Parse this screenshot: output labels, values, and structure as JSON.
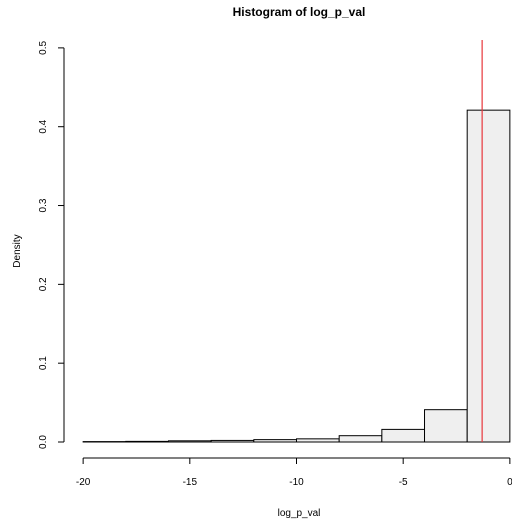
{
  "chart_data": {
    "type": "bar",
    "title": "Histogram of log_p_val",
    "xlabel": "log_p_val",
    "ylabel": "Density",
    "xlim": [
      -20.1,
      0.1
    ],
    "ylim": [
      0,
      0.51
    ],
    "x_ticks": [
      -20,
      -15,
      -10,
      -5,
      0
    ],
    "x_tick_labels": [
      "-20",
      "-15",
      "-10",
      "-5",
      "0"
    ],
    "y_ticks": [
      0.0,
      0.1,
      0.2,
      0.3,
      0.4,
      0.5
    ],
    "y_tick_labels": [
      "0.0",
      "0.1",
      "0.2",
      "0.3",
      "0.4",
      "0.5"
    ],
    "bins": [
      {
        "x0": -20,
        "x1": -18,
        "density": 0.0005
      },
      {
        "x0": -18,
        "x1": -16,
        "density": 0.0008
      },
      {
        "x0": -16,
        "x1": -14,
        "density": 0.0015
      },
      {
        "x0": -14,
        "x1": -12,
        "density": 0.002
      },
      {
        "x0": -12,
        "x1": -10,
        "density": 0.003
      },
      {
        "x0": -10,
        "x1": -8,
        "density": 0.004
      },
      {
        "x0": -8,
        "x1": -6,
        "density": 0.008
      },
      {
        "x0": -6,
        "x1": -4,
        "density": 0.016
      },
      {
        "x0": -4,
        "x1": -2,
        "density": 0.041
      },
      {
        "x0": -2,
        "x1": 0,
        "density": 0.421
      }
    ],
    "vline": {
      "x": -1.3,
      "color": "#e8373b"
    },
    "bar_fill": "#efefef",
    "grid": false
  }
}
